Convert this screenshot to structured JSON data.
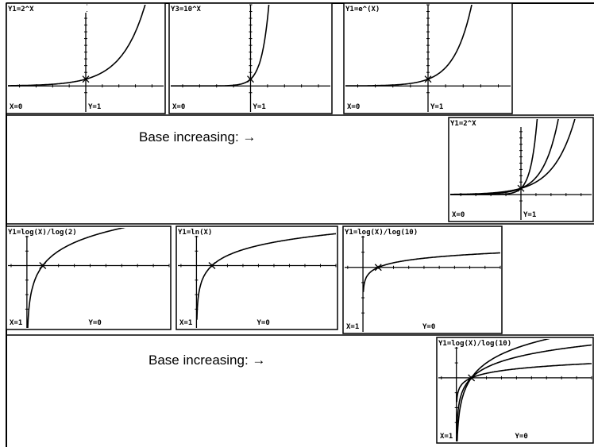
{
  "screens": [
    {
      "title": "Y1=2^X",
      "x_status": "X=0",
      "y_status": "Y=1"
    },
    {
      "title": "Y3=10^X",
      "x_status": "X=0",
      "y_status": "Y=1"
    },
    {
      "title": "Y1=e^(X)",
      "x_status": "X=0",
      "y_status": "Y=1"
    },
    {
      "title": "Y1=2^X",
      "x_status": "X=0",
      "y_status": "Y=1"
    },
    {
      "title": "Y1=log(X)/log(2)",
      "x_status": "X=1",
      "y_status": "Y=0"
    },
    {
      "title": "Y1=ln(X)",
      "x_status": "X=1",
      "y_status": "Y=0"
    },
    {
      "title": "Y1=log(X)/log(10)",
      "x_status": "X=1",
      "y_status": "Y=0"
    },
    {
      "title": "Y1=log(X)/log(10)",
      "x_status": "X=1",
      "y_status": "Y=0"
    }
  ],
  "captions": [
    "Base increasing:  →",
    "Base increasing:  →"
  ]
}
